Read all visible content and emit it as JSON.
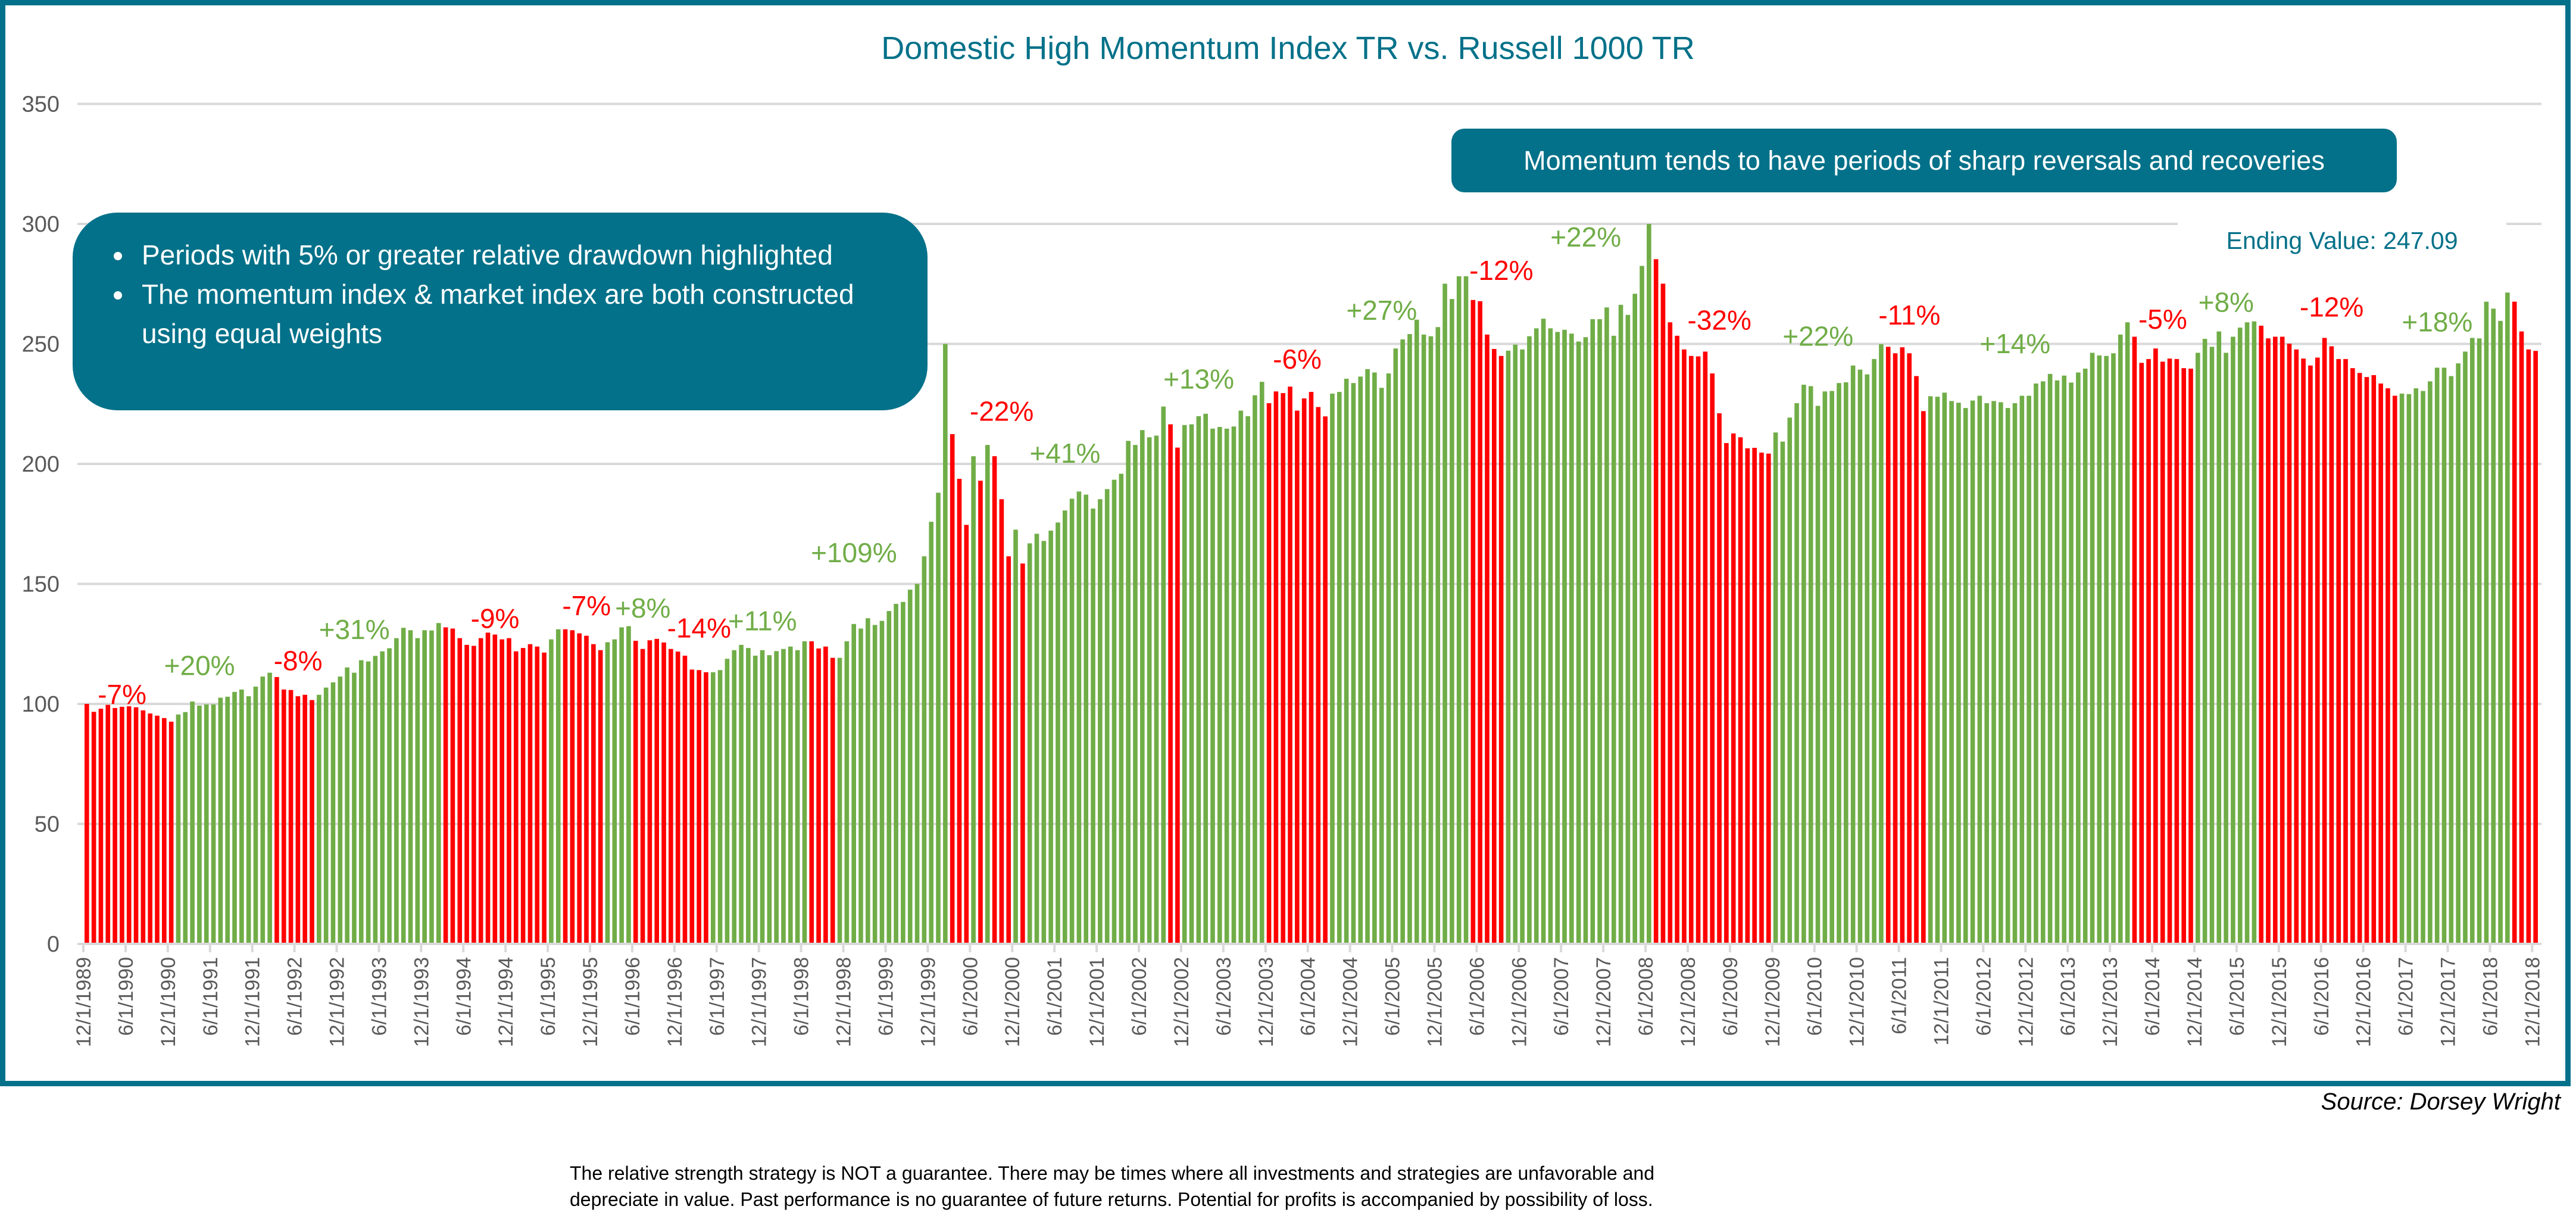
{
  "chart_data": {
    "type": "bar",
    "title": "Domestic High Momentum Index TR vs. Russell 1000 TR",
    "x_start": "12/1/1989",
    "x_end": "12/1/2018",
    "x_frequency": "monthly",
    "x_tick_interval_months": 6,
    "ylim": [
      0,
      350
    ],
    "y_ticks": [
      0,
      50,
      100,
      150,
      200,
      250,
      300,
      350
    ],
    "grid": true,
    "legend": "none",
    "values": [
      100,
      96.7,
      98,
      99.6,
      98.3,
      98.8,
      99,
      98.6,
      97.3,
      96,
      95.1,
      94.1,
      92.6,
      95.6,
      96.6,
      101,
      99.3,
      99.8,
      99.8,
      102.6,
      103,
      105,
      106,
      103.2,
      107.2,
      111.4,
      113,
      111.2,
      106,
      105.8,
      103.2,
      103.8,
      101.6,
      103.8,
      106.8,
      109,
      111.4,
      115.2,
      113,
      118.2,
      117.7,
      120,
      121.9,
      123.2,
      127.4,
      131.7,
      130.7,
      127.4,
      130.7,
      130.6,
      133.7,
      131.9,
      131.4,
      127.4,
      124.6,
      124.2,
      127.4,
      129.7,
      128.9,
      126.9,
      127.4,
      121.9,
      123.3,
      124.9,
      123.9,
      121.4,
      126.9,
      131.1,
      131.1,
      130.7,
      129.4,
      128.4,
      124.9,
      122.4,
      125.7,
      126.9,
      131.9,
      132.4,
      126.3,
      122.9,
      126.5,
      127.1,
      125.6,
      122.9,
      121.8,
      120.1,
      114.3,
      114.1,
      113.2,
      113.2,
      114.1,
      118.8,
      122.4,
      124.6,
      123.3,
      120.1,
      122.4,
      120.3,
      122,
      122.9,
      123.9,
      122.4,
      126.1,
      126.1,
      123.1,
      123.9,
      119.2,
      119.2,
      126.1,
      133.3,
      131.4,
      135.7,
      132.9,
      134.6,
      138.7,
      141.7,
      142.5,
      147.6,
      150,
      161.5,
      175.9,
      188,
      250,
      212.4,
      193.8,
      174.6,
      203.2,
      193,
      207.9,
      203.2,
      185.3,
      161.5,
      172.6,
      158.5,
      166.9,
      170.9,
      167.9,
      172.2,
      175.6,
      180.6,
      185.5,
      188.5,
      187.2,
      181.4,
      185.3,
      189.5,
      193.4,
      195.9,
      209.6,
      207.9,
      214.1,
      211.1,
      211.8,
      223.9,
      216.5,
      206.8,
      216.2,
      216.5,
      219.9,
      220.9,
      214.7,
      215.4,
      214.7,
      215.6,
      222.2,
      219.9,
      228.6,
      234.2,
      225.3,
      230.2,
      229.5,
      232.2,
      222.2,
      227.3,
      230,
      223.7,
      219.8,
      229.3,
      230,
      235.5,
      233.7,
      236.4,
      239.5,
      238.1,
      231.7,
      237.7,
      248.1,
      251.9,
      254.1,
      260.1,
      253.9,
      253.2,
      257,
      275.1,
      268.7,
      278.2,
      278.2,
      268.3,
      267.8,
      253.9,
      247.9,
      245,
      247.2,
      249.7,
      247.7,
      253.2,
      256.5,
      260.5,
      256.5,
      255,
      255.9,
      254.3,
      251,
      252.8,
      260.3,
      260.3,
      265.2,
      253.4,
      266.3,
      262.1,
      270.9,
      282.5,
      300,
      285.3,
      275.1,
      259,
      253.4,
      247.7,
      245,
      244.8,
      246.8,
      237.7,
      221.1,
      208.7,
      212.7,
      211.1,
      206.5,
      206.7,
      204.7,
      204.3,
      213.1,
      209.3,
      219.3,
      225.3,
      233,
      232.4,
      224.2,
      230.2,
      230.4,
      233.7,
      234,
      241,
      239.3,
      237.3,
      243.7,
      249.9,
      248.8,
      246.1,
      248.6,
      246.1,
      236.6,
      222,
      228.2,
      228,
      229.7,
      226.2,
      225.5,
      223.3,
      226.4,
      228.4,
      225.3,
      226.2,
      225.7,
      223.3,
      225.3,
      228.4,
      228.4,
      233.5,
      234.4,
      237.5,
      234.8,
      236.8,
      233.9,
      238.1,
      239.7,
      246.3,
      245.2,
      245,
      246.1,
      253.9,
      259,
      253,
      242.1,
      243.7,
      248.1,
      242.6,
      243.9,
      243.7,
      239.9,
      239.7,
      246.3,
      252.1,
      248.8,
      255.2,
      246.3,
      253,
      256.8,
      259,
      259.4,
      257.6,
      252.3,
      253,
      253,
      250.1,
      247.7,
      243.9,
      241,
      244.3,
      252.5,
      249,
      243.7,
      243.7,
      239.9,
      237.9,
      236.2,
      237,
      233.5,
      231.5,
      228.4,
      229.3,
      229.1,
      231.5,
      230.4,
      234.4,
      240.1,
      240.1,
      236.6,
      241.9,
      246.8,
      252.5,
      252.3,
      267.6,
      264.7,
      259.6,
      271.4,
      267.6,
      255.2,
      247.7,
      247.09
    ],
    "highlighted_drawdown_periods": [
      [
        "12/1/1989",
        "12/1/1990"
      ],
      [
        "3/1/1992",
        "8/1/1992"
      ],
      [
        "3/1/1994",
        "5/1/1995"
      ],
      [
        "8/1/1995",
        "1/1/1996"
      ],
      [
        "6/1/1996",
        "4/1/1997"
      ],
      [
        "7/1/1998",
        "10/1/1998"
      ],
      [
        "3/1/2000",
        "5/1/2000"
      ],
      [
        "7/1/2000",
        "7/1/2000"
      ],
      [
        "9/1/2000",
        "11/1/2000"
      ],
      [
        "1/1/2001",
        "1/1/2001"
      ],
      [
        "10/1/2002",
        "11/1/2002"
      ],
      [
        "12/1/2003",
        "8/1/2004"
      ],
      [
        "5/1/2006",
        "9/1/2006"
      ],
      [
        "7/1/2008",
        "11/1/2009"
      ],
      [
        "4/1/2011",
        "9/1/2011"
      ],
      [
        "3/1/2014",
        "11/1/2014"
      ],
      [
        "9/1/2015",
        "4/1/2017"
      ],
      [
        "9/1/2018",
        "12/1/2018"
      ]
    ],
    "annotations": [
      {
        "text": "-7%",
        "x": "5/1/1990",
        "y": 104,
        "kind": "drawdown"
      },
      {
        "text": "+20%",
        "x": "4/1/1991",
        "y": 116,
        "kind": "recovery"
      },
      {
        "text": "-8%",
        "x": "6/1/1992",
        "y": 118,
        "kind": "drawdown"
      },
      {
        "text": "+31%",
        "x": "2/1/1993",
        "y": 131,
        "kind": "recovery"
      },
      {
        "text": "-9%",
        "x": "10/1/1994",
        "y": 135.6,
        "kind": "drawdown"
      },
      {
        "text": "-7%",
        "x": "11/1/1995",
        "y": 141,
        "kind": "drawdown"
      },
      {
        "text": "+8%",
        "x": "7/1/1996",
        "y": 140,
        "kind": "recovery"
      },
      {
        "text": "-14%",
        "x": "3/1/1997",
        "y": 131.6,
        "kind": "drawdown"
      },
      {
        "text": "+11%",
        "x": "12/1/1997",
        "y": 134.6,
        "kind": "recovery"
      },
      {
        "text": "+109%",
        "x": "1/1/1999",
        "y": 163,
        "kind": "recovery"
      },
      {
        "text": "-22%",
        "x": "10/1/2000",
        "y": 222,
        "kind": "drawdown"
      },
      {
        "text": "+41%",
        "x": "7/1/2001",
        "y": 204.5,
        "kind": "recovery"
      },
      {
        "text": "+13%",
        "x": "2/1/2003",
        "y": 235.3,
        "kind": "recovery"
      },
      {
        "text": "-6%",
        "x": "4/1/2004",
        "y": 243.7,
        "kind": "drawdown"
      },
      {
        "text": "+27%",
        "x": "4/1/2005",
        "y": 264,
        "kind": "recovery"
      },
      {
        "text": "-12%",
        "x": "9/1/2006",
        "y": 280.7,
        "kind": "drawdown"
      },
      {
        "text": "+22%",
        "x": "9/1/2007",
        "y": 294.6,
        "kind": "recovery"
      },
      {
        "text": "-32%",
        "x": "4/1/2009",
        "y": 259.9,
        "kind": "drawdown"
      },
      {
        "text": "+22%",
        "x": "6/1/2010",
        "y": 253.2,
        "kind": "recovery"
      },
      {
        "text": "-11%",
        "x": "7/1/2011",
        "y": 262,
        "kind": "drawdown"
      },
      {
        "text": "+14%",
        "x": "10/1/2012",
        "y": 250.1,
        "kind": "recovery"
      },
      {
        "text": "-5%",
        "x": "7/1/2014",
        "y": 260.3,
        "kind": "drawdown"
      },
      {
        "text": "+8%",
        "x": "4/1/2015",
        "y": 267.4,
        "kind": "recovery"
      },
      {
        "text": "-12%",
        "x": "7/1/2016",
        "y": 265.4,
        "kind": "drawdown"
      },
      {
        "text": "+18%",
        "x": "10/1/2017",
        "y": 259.2,
        "kind": "recovery"
      }
    ],
    "colors": {
      "drawdown": "#FF0000",
      "recovery": "#70AD47",
      "accent": "#037189",
      "grid": "#D9D9D9",
      "axis_text": "#595959"
    }
  },
  "callouts": {
    "left_bullets": [
      "Periods with 5% or greater relative drawdown highlighted",
      "The momentum index & market index are both constructed using equal weights"
    ],
    "right": "Momentum tends to have periods of sharp reversals and recoveries",
    "ending_value": "Ending Value: 247.09"
  },
  "source": "Source: Dorsey Wright",
  "disclaimer": {
    "line1": "The relative strength strategy is NOT a guarantee.  There may be times where all investments and strategies are unfavorable and",
    "line2": "depreciate in value. Past performance is no guarantee of future returns. Potential for profits is accompanied by possibility of loss."
  }
}
